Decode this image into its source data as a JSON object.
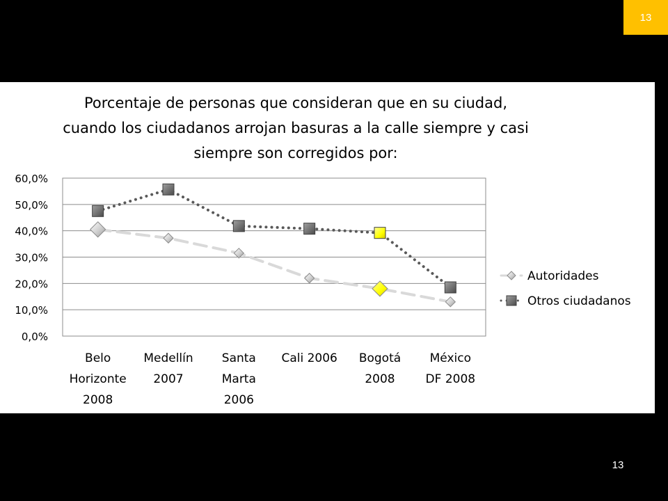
{
  "slide": {
    "badge_number": "13",
    "footer_number": "13",
    "badge_color": "#FFC000"
  },
  "chart_data": {
    "type": "line",
    "title_lines": [
      "Porcentaje de personas que consideran que en su ciudad,",
      "cuando los ciudadanos arrojan basuras a la calle siempre y casi",
      "siempre son corregidos por:"
    ],
    "categories": [
      [
        "Belo",
        "Horizonte",
        "2008"
      ],
      [
        "Medellín",
        "2007"
      ],
      [
        "Santa",
        "Marta",
        "2006"
      ],
      [
        "Cali 2006"
      ],
      [
        "Bogotá",
        "2008"
      ],
      [
        "México",
        "DF 2008"
      ]
    ],
    "ylim": [
      0,
      60
    ],
    "yticks": [
      0,
      10,
      20,
      30,
      40,
      50,
      60
    ],
    "ytick_labels": [
      "0,0%",
      "10,0%",
      "20,0%",
      "30,0%",
      "40,0%",
      "50,0%",
      "60,0%"
    ],
    "grid": true,
    "legend_position": "right",
    "highlight_index": 4,
    "highlight_color": "#FFFF00",
    "series": [
      {
        "name": "Autoridades",
        "marker": "diamond",
        "line_style": "dashed",
        "color": "#D9D9D9",
        "values": [
          40.5,
          37.2,
          31.5,
          22.0,
          18.0,
          13.0
        ]
      },
      {
        "name": "Otros ciudadanos",
        "marker": "square",
        "line_style": "dotted",
        "color": "#595959",
        "values": [
          47.5,
          55.7,
          41.8,
          40.8,
          39.2,
          18.5
        ]
      }
    ]
  }
}
